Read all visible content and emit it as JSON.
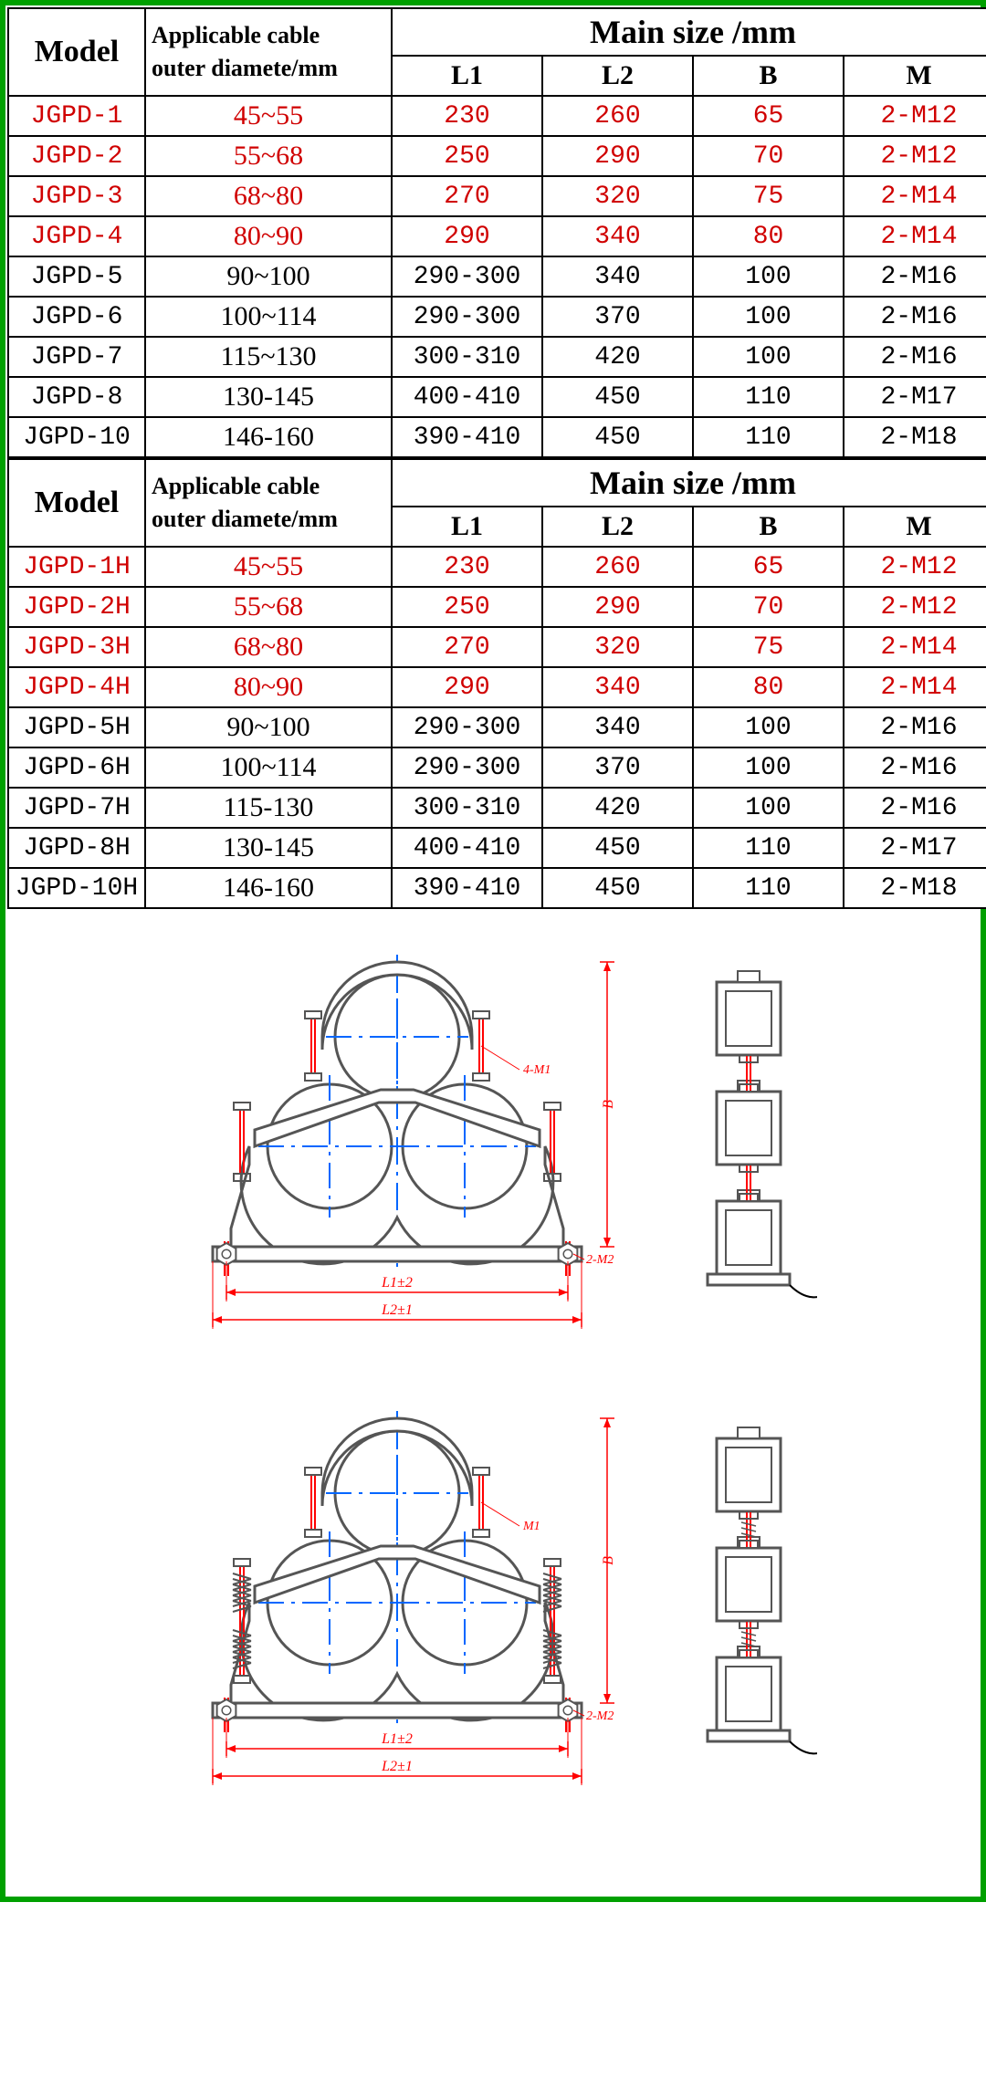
{
  "headers": {
    "model": "Model",
    "applicable_html": "Applicable cable<br>outer diamete/mm",
    "main_size": "Main size /mm",
    "l1": "L1",
    "l2": "L2",
    "b": "B",
    "m": "M"
  },
  "table1": {
    "rows": [
      {
        "model": "JGPD-1",
        "diam": "45~55",
        "l1": "230",
        "l2": "260",
        "b": "65",
        "m": "2-M12",
        "color": "red"
      },
      {
        "model": "JGPD-2",
        "diam": "55~68",
        "l1": "250",
        "l2": "290",
        "b": "70",
        "m": "2-M12",
        "color": "red"
      },
      {
        "model": "JGPD-3",
        "diam": "68~80",
        "l1": "270",
        "l2": "320",
        "b": "75",
        "m": "2-M14",
        "color": "red"
      },
      {
        "model": "JGPD-4",
        "diam": "80~90",
        "l1": "290",
        "l2": "340",
        "b": "80",
        "m": "2-M14",
        "color": "red"
      },
      {
        "model": "JGPD-5",
        "diam": "90~100",
        "l1": "290-300",
        "l2": "340",
        "b": "100",
        "m": "2-M16",
        "color": "black"
      },
      {
        "model": "JGPD-6",
        "diam": "100~114",
        "l1": "290-300",
        "l2": "370",
        "b": "100",
        "m": "2-M16",
        "color": "black"
      },
      {
        "model": "JGPD-7",
        "diam": "115~130",
        "l1": "300-310",
        "l2": "420",
        "b": "100",
        "m": "2-M16",
        "color": "black"
      },
      {
        "model": "JGPD-8",
        "diam": "130-145",
        "l1": "400-410",
        "l2": "450",
        "b": "110",
        "m": "2-M17",
        "color": "black"
      },
      {
        "model": "JGPD-10",
        "diam": "146-160",
        "l1": "390-410",
        "l2": "450",
        "b": "110",
        "m": "2-M18",
        "color": "black"
      }
    ]
  },
  "table2": {
    "rows": [
      {
        "model": "JGPD-1H",
        "diam": "45~55",
        "l1": "230",
        "l2": "260",
        "b": "65",
        "m": "2-M12",
        "color": "red"
      },
      {
        "model": "JGPD-2H",
        "diam": "55~68",
        "l1": "250",
        "l2": "290",
        "b": "70",
        "m": "2-M12",
        "color": "red"
      },
      {
        "model": "JGPD-3H",
        "diam": "68~80",
        "l1": "270",
        "l2": "320",
        "b": "75",
        "m": "2-M14",
        "color": "red"
      },
      {
        "model": "JGPD-4H",
        "diam": "80~90",
        "l1": "290",
        "l2": "340",
        "b": "80",
        "m": "2-M14",
        "color": "red"
      },
      {
        "model": "JGPD-5H",
        "diam": "90~100",
        "l1": "290-300",
        "l2": "340",
        "b": "100",
        "m": "2-M16",
        "color": "black"
      },
      {
        "model": "JGPD-6H",
        "diam": "100~114",
        "l1": "290-300",
        "l2": "370",
        "b": "100",
        "m": "2-M16",
        "color": "black"
      },
      {
        "model": "JGPD-7H",
        "diam": "115-130",
        "l1": "300-310",
        "l2": "420",
        "b": "100",
        "m": "2-M16",
        "color": "black"
      },
      {
        "model": "JGPD-8H",
        "diam": "130-145",
        "l1": "400-410",
        "l2": "450",
        "b": "110",
        "m": "2-M17",
        "color": "black"
      },
      {
        "model": "JGPD-10H",
        "diam": "146-160",
        "l1": "390-410",
        "l2": "450",
        "b": "110",
        "m": "2-M18",
        "color": "black"
      }
    ]
  },
  "diagram": {
    "colors": {
      "outline": "#555555",
      "dim": "#ff0000",
      "bolt": "#ff0000",
      "center": "#0066ff"
    },
    "labels": {
      "l1": "L1±2",
      "l2": "L2±1",
      "m1_top": "4-M1",
      "m1_side": "M1",
      "b_label": "B",
      "m2": "2-M2"
    }
  }
}
